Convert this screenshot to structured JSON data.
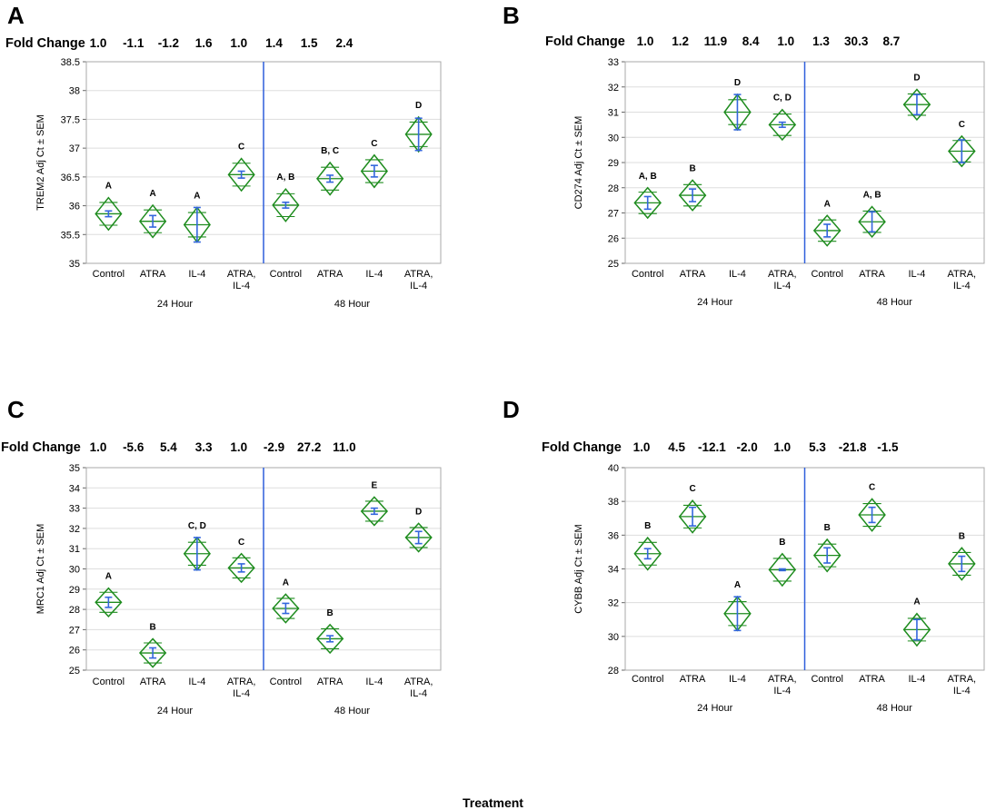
{
  "figure": {
    "x_label": "Treatment"
  },
  "colors": {
    "diamond": "#1e8c1e",
    "error_bar": "#3366dd",
    "divider": "#2f5fdc",
    "frame": "#aaaaaa",
    "grid": "#dddddd"
  },
  "chart_data": [
    {
      "panel": "A",
      "type": "scatter",
      "ylabel": "TREM2 Adj Ct ± SEM",
      "ylim": [
        35,
        38.5
      ],
      "yticks": [
        "35",
        "35.5",
        "36",
        "36.5",
        "37",
        "37.5",
        "38",
        "38.5"
      ],
      "fold_change_label": "Fold Change",
      "fold_change": [
        "1.0",
        "-1.1",
        "-1.2",
        "1.6",
        "1.0",
        "1.4",
        "1.5",
        "2.4"
      ],
      "categories": [
        "Control",
        "ATRA",
        "IL-4",
        "ATRA,\nIL-4",
        "Control",
        "ATRA",
        "IL-4",
        "ATRA,\nIL-4"
      ],
      "groups": [
        "24 Hour",
        "48 Hour"
      ],
      "means": [
        35.86,
        35.73,
        35.67,
        36.54,
        36.01,
        36.47,
        36.6,
        37.24
      ],
      "sem": [
        0.05,
        0.1,
        0.3,
        0.06,
        0.05,
        0.06,
        0.1,
        0.28
      ],
      "ci": [
        0.28,
        0.28,
        0.3,
        0.28,
        0.28,
        0.28,
        0.28,
        0.3
      ],
      "letters": [
        "A",
        "A",
        "A",
        "C",
        "A, B",
        "B, C",
        "C",
        "D"
      ]
    },
    {
      "panel": "B",
      "type": "scatter",
      "ylabel": "CD274 Adj Ct ± SEM",
      "ylim": [
        25,
        33
      ],
      "yticks": [
        "25",
        "26",
        "27",
        "28",
        "29",
        "30",
        "31",
        "32",
        "33"
      ],
      "fold_change_label": "Fold Change",
      "fold_change": [
        "1.0",
        "1.2",
        "11.9",
        "8.4",
        "1.0",
        "1.3",
        "30.3",
        "8.7"
      ],
      "categories": [
        "Control",
        "ATRA",
        "IL-4",
        "ATRA,\nIL-4",
        "Control",
        "ATRA",
        "IL-4",
        "ATRA,\nIL-4"
      ],
      "groups": [
        "24 Hour",
        "48 Hour"
      ],
      "means": [
        27.4,
        27.7,
        31.0,
        30.5,
        26.3,
        26.65,
        31.3,
        29.45
      ],
      "sem": [
        0.25,
        0.25,
        0.7,
        0.1,
        0.25,
        0.4,
        0.4,
        0.45
      ],
      "ci": [
        0.6,
        0.6,
        0.7,
        0.6,
        0.6,
        0.6,
        0.6,
        0.6
      ],
      "letters": [
        "A, B",
        "B",
        "D",
        "C, D",
        "A",
        "A, B",
        "D",
        "C"
      ]
    },
    {
      "panel": "C",
      "type": "scatter",
      "ylabel": "MRC1 Adj Ct ± SEM",
      "ylim": [
        25,
        35
      ],
      "yticks": [
        "25",
        "26",
        "27",
        "28",
        "29",
        "30",
        "31",
        "32",
        "33",
        "34",
        "35"
      ],
      "fold_change_label": "Fold Change",
      "fold_change": [
        "1.0",
        "-5.6",
        "5.4",
        "3.3",
        "1.0",
        "-2.9",
        "27.2",
        "11.0"
      ],
      "categories": [
        "Control",
        "ATRA",
        "IL-4",
        "ATRA,\nIL-4",
        "Control",
        "ATRA",
        "IL-4",
        "ATRA,\nIL-4"
      ],
      "groups": [
        "24 Hour",
        "48 Hour"
      ],
      "means": [
        28.35,
        25.85,
        30.75,
        30.05,
        28.05,
        26.55,
        32.85,
        31.55
      ],
      "sem": [
        0.25,
        0.25,
        0.8,
        0.2,
        0.25,
        0.15,
        0.15,
        0.3
      ],
      "ci": [
        0.7,
        0.7,
        0.8,
        0.7,
        0.7,
        0.7,
        0.7,
        0.7
      ],
      "letters": [
        "A",
        "B",
        "C, D",
        "C",
        "A",
        "B",
        "E",
        "D"
      ]
    },
    {
      "panel": "D",
      "type": "scatter",
      "ylabel": "CYBB Adj Ct ± SEM",
      "ylim": [
        28,
        40
      ],
      "yticks": [
        "28",
        "30",
        "32",
        "34",
        "36",
        "38",
        "40"
      ],
      "fold_change_label": "Fold Change",
      "fold_change": [
        "1.0",
        "4.5",
        "-12.1",
        "-2.0",
        "1.0",
        "5.3",
        "-21.8",
        "-1.5"
      ],
      "categories": [
        "Control",
        "ATRA",
        "IL-4",
        "ATRA,\nIL-4",
        "Control",
        "ATRA",
        "IL-4",
        "ATRA,\nIL-4"
      ],
      "groups": [
        "24 Hour",
        "48 Hour"
      ],
      "means": [
        34.9,
        37.1,
        31.35,
        33.95,
        34.8,
        37.2,
        30.4,
        34.3
      ],
      "sem": [
        0.3,
        0.55,
        1.0,
        0.05,
        0.45,
        0.45,
        0.6,
        0.45
      ],
      "ci": [
        0.95,
        0.95,
        1.0,
        0.95,
        0.95,
        0.95,
        0.95,
        0.95
      ],
      "letters": [
        "B",
        "C",
        "A",
        "B",
        "B",
        "C",
        "A",
        "B"
      ]
    }
  ]
}
